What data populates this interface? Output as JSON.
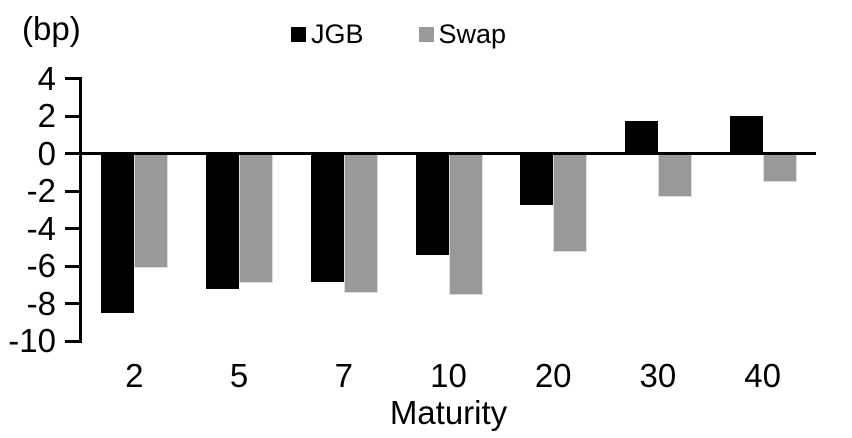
{
  "chart_data": {
    "type": "bar",
    "title": "",
    "unit_label": "(bp)",
    "xlabel": "Maturity",
    "ylabel": "",
    "categories": [
      "2",
      "5",
      "7",
      "10",
      "20",
      "30",
      "40"
    ],
    "series": [
      {
        "name": "JGB",
        "color": "#000000",
        "values": [
          -8.5,
          -7.2,
          -6.8,
          -5.4,
          -2.7,
          1.7,
          2.0
        ]
      },
      {
        "name": "Swap",
        "color": "#999999",
        "values": [
          -6.1,
          -6.9,
          -7.4,
          -7.5,
          -5.2,
          -2.3,
          -1.5
        ]
      }
    ],
    "ylim": [
      -10,
      4
    ],
    "yticks": [
      4,
      2,
      0,
      -2,
      -4,
      -6,
      -8,
      -10
    ],
    "grid": false,
    "legend_position": "top"
  }
}
